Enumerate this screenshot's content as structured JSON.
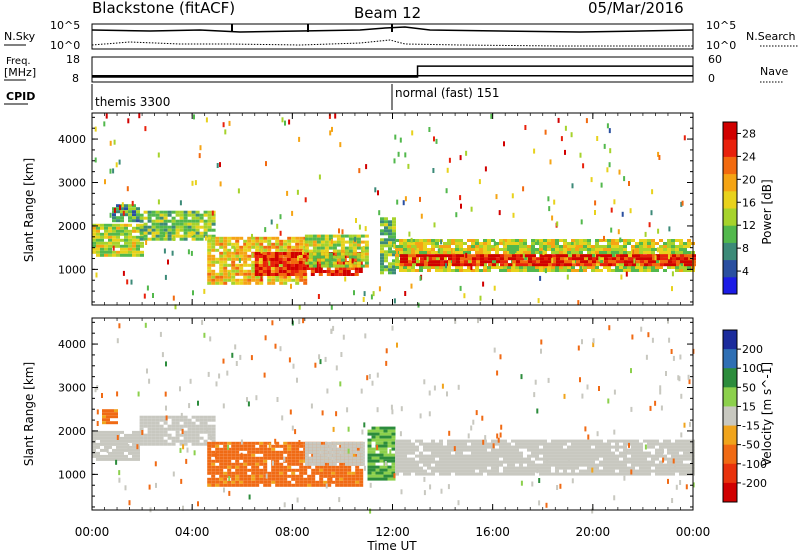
{
  "header": {
    "station": "Blackstone (fitACF)",
    "beam": "Beam 12",
    "date": "05/Mar/2016"
  },
  "summary_labels": {
    "nsky": "N.Sky",
    "nsearch": "N.Search",
    "freq_top": "Freq.",
    "freq_unit": "[MHz]",
    "nave": "Nave",
    "cpid": "CPID",
    "noise_ticks": [
      "10^5",
      "10^0"
    ],
    "freq_ticks": [
      "18",
      "8"
    ],
    "nave_ticks": [
      "60",
      "0"
    ]
  },
  "cpid_segments": [
    {
      "label": "themis 3300",
      "start_hour": 0
    },
    {
      "label": "normal (fast) 151",
      "start_hour": 12
    }
  ],
  "summary_data": {
    "freq_mhz": [
      {
        "from": 0,
        "to": 12,
        "value": 10.5
      },
      {
        "from": 12,
        "to": 24,
        "value": 10.5
      }
    ],
    "nave": [
      {
        "from": 0,
        "to": 13,
        "value": 12
      },
      {
        "from": 13,
        "to": 24,
        "value": 38
      }
    ]
  },
  "x_axis": {
    "label": "Time UT",
    "ticks": [
      "00:00",
      "04:00",
      "08:00",
      "12:00",
      "16:00",
      "20:00",
      "00:00"
    ]
  },
  "chart_data": [
    {
      "type": "heatmap",
      "quantity": "Power",
      "ylabel": "Slant Range [km]",
      "colorbar_label": "Power [dB]",
      "x_range_hours": [
        0,
        24
      ],
      "y_range_km": [
        180,
        4600
      ],
      "y_ticks": [
        "1000",
        "2000",
        "3000",
        "4000"
      ],
      "colorbar_ticks": [
        "4",
        "8",
        "12",
        "16",
        "20",
        "24",
        "28"
      ],
      "colorbar_colors": [
        "#1c1ce6",
        "#2a4fa0",
        "#3c8a78",
        "#52b84c",
        "#a6d32c",
        "#e8d21c",
        "#f5a414",
        "#f26a0f",
        "#e8210c",
        "#d10000"
      ],
      "bands": [
        {
          "t0": 0.0,
          "t1": 2.0,
          "r0": 1350,
          "r1": 2050,
          "db": 14
        },
        {
          "t0": 0.8,
          "t1": 1.8,
          "r0": 2150,
          "r1": 2500,
          "db": 9
        },
        {
          "t0": 1.9,
          "t1": 4.8,
          "r0": 1700,
          "r1": 2350,
          "db": 12
        },
        {
          "t0": 4.6,
          "t1": 8.5,
          "r0": 700,
          "r1": 1750,
          "db": 18
        },
        {
          "t0": 6.5,
          "t1": 10.8,
          "r0": 850,
          "r1": 1400,
          "db": 26
        },
        {
          "t0": 8.5,
          "t1": 11.0,
          "r0": 1100,
          "r1": 1800,
          "db": 14
        },
        {
          "t0": 11.5,
          "t1": 12.1,
          "r0": 900,
          "r1": 2200,
          "db": 11
        },
        {
          "t0": 12.1,
          "t1": 24.0,
          "r0": 1000,
          "r1": 1700,
          "db": 15
        },
        {
          "t0": 12.3,
          "t1": 24.0,
          "r0": 1100,
          "r1": 1350,
          "db": 27
        }
      ]
    },
    {
      "type": "heatmap",
      "quantity": "Velocity",
      "ylabel": "Slant Range [km]",
      "colorbar_label": "Velocity [m s^-1]",
      "x_range_hours": [
        0,
        24
      ],
      "y_range_km": [
        180,
        4600
      ],
      "y_ticks": [
        "1000",
        "2000",
        "3000",
        "4000"
      ],
      "colorbar_ticks": [
        "200",
        "100",
        "50",
        "15",
        "-15",
        "-50",
        "-100",
        "-200"
      ],
      "colorbar_colors": [
        "#1c2c9c",
        "#2f6fb4",
        "#2c8c3c",
        "#8cd04c",
        "#c8c8c0",
        "#f0a41c",
        "#f06a14",
        "#e8320c",
        "#d00000"
      ],
      "bands": [
        {
          "t0": 0.0,
          "t1": 1.9,
          "r0": 1350,
          "r1": 2000,
          "vel": 0
        },
        {
          "t0": 0.4,
          "t1": 0.9,
          "r0": 2200,
          "r1": 2500,
          "vel": -40
        },
        {
          "t0": 1.9,
          "t1": 4.8,
          "r0": 1700,
          "r1": 2350,
          "vel": 0
        },
        {
          "t0": 4.6,
          "t1": 10.8,
          "r0": 750,
          "r1": 1750,
          "vel": -40
        },
        {
          "t0": 8.5,
          "t1": 10.8,
          "r0": 1200,
          "r1": 1750,
          "vel": 0
        },
        {
          "t0": 11.0,
          "t1": 12.1,
          "r0": 900,
          "r1": 2100,
          "vel": 30
        },
        {
          "t0": 12.1,
          "t1": 24.0,
          "r0": 1000,
          "r1": 1800,
          "vel": 0
        }
      ]
    }
  ]
}
